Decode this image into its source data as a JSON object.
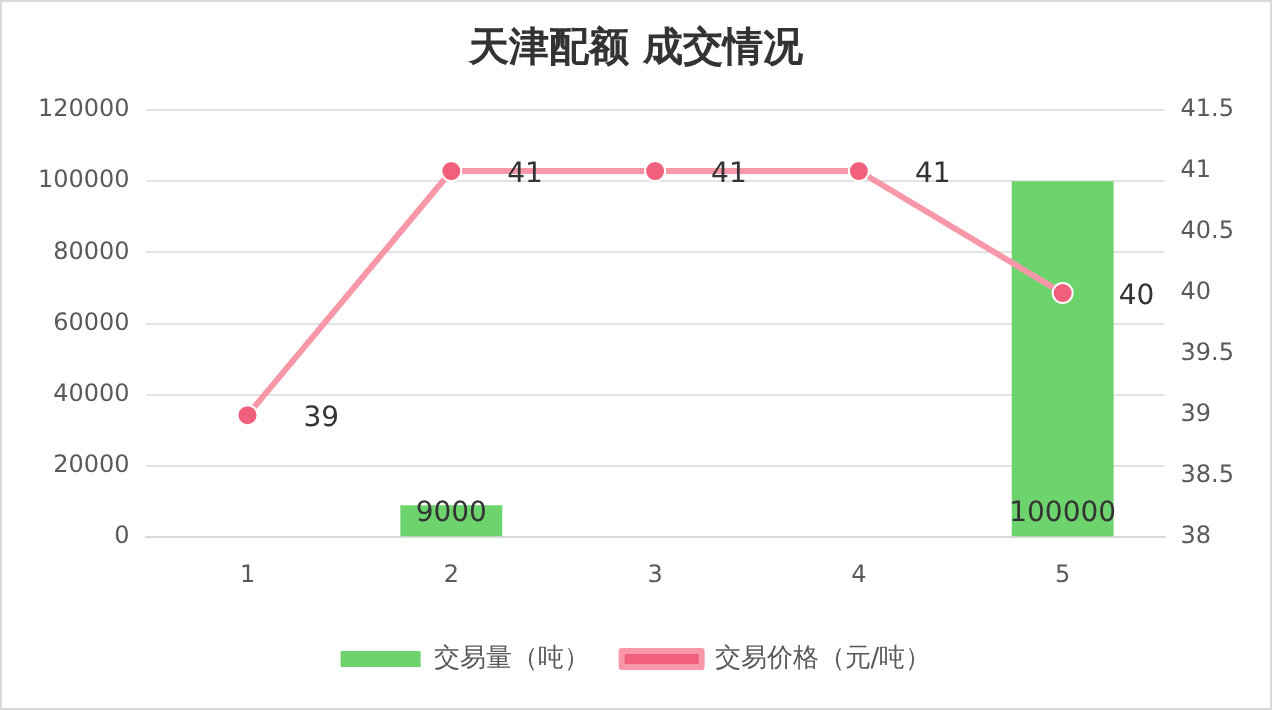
{
  "chart_data": {
    "type": "bar",
    "title": "天津配额 成交情况",
    "categories": [
      "1",
      "2",
      "3",
      "4",
      "5"
    ],
    "series": [
      {
        "name": "交易量（吨）",
        "color": "#6dd46d",
        "values": [
          null,
          9000,
          null,
          null,
          100000
        ]
      },
      {
        "name": "交易价格（元/吨）",
        "type": "line",
        "axis": "y2",
        "color": "#f797a8",
        "marker": "circle",
        "values": [
          39,
          41,
          41,
          41,
          40
        ]
      }
    ],
    "ylim": [
      0,
      120000
    ],
    "yticks": [
      0,
      20000,
      40000,
      60000,
      80000,
      100000,
      120000
    ],
    "y2lim": [
      38,
      41.5
    ],
    "y2ticks": [
      38,
      38.5,
      39,
      39.5,
      40,
      40.5,
      41,
      41.5
    ],
    "grid": "y",
    "legend": "bottom",
    "data_labels": true
  }
}
